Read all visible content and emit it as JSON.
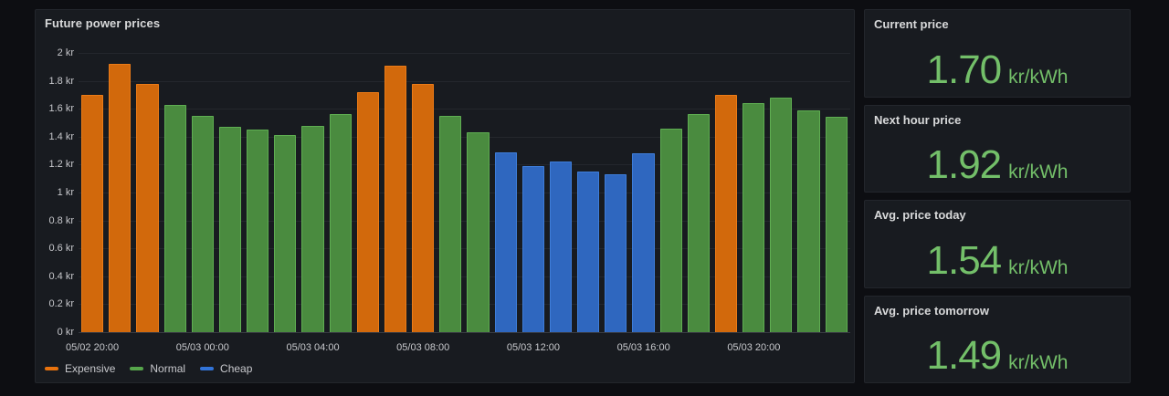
{
  "chart_panel": {
    "title": "Future power prices"
  },
  "stats": [
    {
      "title": "Current price",
      "value": "1.70",
      "unit": "kr/kWh"
    },
    {
      "title": "Next hour price",
      "value": "1.92",
      "unit": "kr/kWh"
    },
    {
      "title": "Avg. price today",
      "value": "1.54",
      "unit": "kr/kWh"
    },
    {
      "title": "Avg. price tomorrow",
      "value": "1.49",
      "unit": "kr/kWh"
    }
  ],
  "chart_data": {
    "type": "bar",
    "title": "Future power prices",
    "xlabel": "",
    "ylabel": "",
    "unit": "kr",
    "ylim": [
      0,
      2
    ],
    "grid": true,
    "legend_position": "bottom-left",
    "yticks": [
      {
        "v": 2,
        "label": "2 kr"
      },
      {
        "v": 1.8,
        "label": "1.8 kr"
      },
      {
        "v": 1.6,
        "label": "1.6 kr"
      },
      {
        "v": 1.4,
        "label": "1.4 kr"
      },
      {
        "v": 1.2,
        "label": "1.2 kr"
      },
      {
        "v": 1,
        "label": "1 kr"
      },
      {
        "v": 0.8,
        "label": "0.8 kr"
      },
      {
        "v": 0.6,
        "label": "0.6 kr"
      },
      {
        "v": 0.4,
        "label": "0.4 kr"
      },
      {
        "v": 0.2,
        "label": "0.2 kr"
      },
      {
        "v": 0,
        "label": "0 kr"
      }
    ],
    "x_tick_labels": [
      {
        "index": 0,
        "label": "05/02 20:00"
      },
      {
        "index": 4,
        "label": "05/03 00:00"
      },
      {
        "index": 8,
        "label": "05/03 04:00"
      },
      {
        "index": 12,
        "label": "05/03 08:00"
      },
      {
        "index": 16,
        "label": "05/03 12:00"
      },
      {
        "index": 20,
        "label": "05/03 16:00"
      },
      {
        "index": 24,
        "label": "05/03 20:00"
      }
    ],
    "series_legend": [
      {
        "name": "Expensive",
        "color": "#e8720d"
      },
      {
        "name": "Normal",
        "color": "#56a64b"
      },
      {
        "name": "Cheap",
        "color": "#3274d9"
      }
    ],
    "bars": [
      {
        "x": "05/02 20:00",
        "value": 1.7,
        "series": "Expensive"
      },
      {
        "x": "05/02 21:00",
        "value": 1.92,
        "series": "Expensive"
      },
      {
        "x": "05/02 22:00",
        "value": 1.78,
        "series": "Expensive"
      },
      {
        "x": "05/02 23:00",
        "value": 1.63,
        "series": "Normal"
      },
      {
        "x": "05/03 00:00",
        "value": 1.55,
        "series": "Normal"
      },
      {
        "x": "05/03 01:00",
        "value": 1.47,
        "series": "Normal"
      },
      {
        "x": "05/03 02:00",
        "value": 1.45,
        "series": "Normal"
      },
      {
        "x": "05/03 03:00",
        "value": 1.41,
        "series": "Normal"
      },
      {
        "x": "05/03 04:00",
        "value": 1.48,
        "series": "Normal"
      },
      {
        "x": "05/03 05:00",
        "value": 1.56,
        "series": "Normal"
      },
      {
        "x": "05/03 06:00",
        "value": 1.72,
        "series": "Expensive"
      },
      {
        "x": "05/03 07:00",
        "value": 1.91,
        "series": "Expensive"
      },
      {
        "x": "05/03 08:00",
        "value": 1.78,
        "series": "Expensive"
      },
      {
        "x": "05/03 09:00",
        "value": 1.55,
        "series": "Normal"
      },
      {
        "x": "05/03 10:00",
        "value": 1.43,
        "series": "Normal"
      },
      {
        "x": "05/03 11:00",
        "value": 1.29,
        "series": "Cheap"
      },
      {
        "x": "05/03 12:00",
        "value": 1.19,
        "series": "Cheap"
      },
      {
        "x": "05/03 13:00",
        "value": 1.22,
        "series": "Cheap"
      },
      {
        "x": "05/03 14:00",
        "value": 1.15,
        "series": "Cheap"
      },
      {
        "x": "05/03 15:00",
        "value": 1.13,
        "series": "Cheap"
      },
      {
        "x": "05/03 16:00",
        "value": 1.28,
        "series": "Cheap"
      },
      {
        "x": "05/03 17:00",
        "value": 1.46,
        "series": "Normal"
      },
      {
        "x": "05/03 18:00",
        "value": 1.56,
        "series": "Normal"
      },
      {
        "x": "05/03 19:00",
        "value": 1.7,
        "series": "Expensive"
      },
      {
        "x": "05/03 20:00",
        "value": 1.64,
        "series": "Normal"
      },
      {
        "x": "05/03 21:00",
        "value": 1.68,
        "series": "Normal"
      },
      {
        "x": "05/03 22:00",
        "value": 1.59,
        "series": "Normal"
      },
      {
        "x": "05/03 23:00",
        "value": 1.54,
        "series": "Normal"
      }
    ]
  },
  "colors": {
    "page_bg": "#0d0e12",
    "panel_bg": "#181b20",
    "panel_border": "#23262c",
    "text_primary": "#d8d9da",
    "text_axis": "#c7c8cc",
    "grid": "rgba(204,204,220,0.07)",
    "axis_line": "rgba(204,204,220,0.18)",
    "stat_green": "#73bf69",
    "series": {
      "Expensive": {
        "fill": "#d2690c",
        "stroke": "#eb7b17"
      },
      "Normal": {
        "fill": "#4a8b3f",
        "stroke": "#5fae52"
      },
      "Cheap": {
        "fill": "#2f67bf",
        "stroke": "#3e7dd9"
      }
    }
  }
}
